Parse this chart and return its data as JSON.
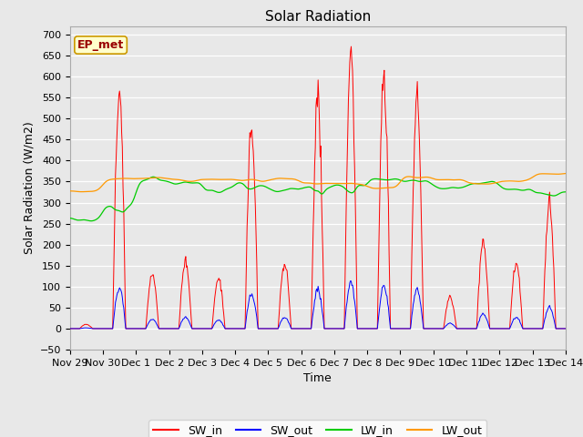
{
  "title": "Solar Radiation",
  "xlabel": "Time",
  "ylabel": "Solar Radiation (W/m2)",
  "ylim": [
    -50,
    720
  ],
  "background_color": "#e8e8e8",
  "plot_bg_color": "#e8e8e8",
  "grid_color": "#ffffff",
  "series_colors": {
    "SW_in": "#ff0000",
    "SW_out": "#0000ff",
    "LW_in": "#00cc00",
    "LW_out": "#ff9900"
  },
  "legend_label": "EP_met",
  "legend_box_color": "#ffffcc",
  "legend_box_border": "#cc9900",
  "legend_text_color": "#990000",
  "day_peaks": [
    10,
    560,
    130,
    160,
    120,
    480,
    155,
    545,
    660,
    595,
    535,
    75,
    205,
    155,
    290
  ],
  "sw_out_scale": 0.17,
  "title_fontsize": 11,
  "axis_fontsize": 9,
  "tick_fontsize": 8,
  "legend_fontsize": 9
}
